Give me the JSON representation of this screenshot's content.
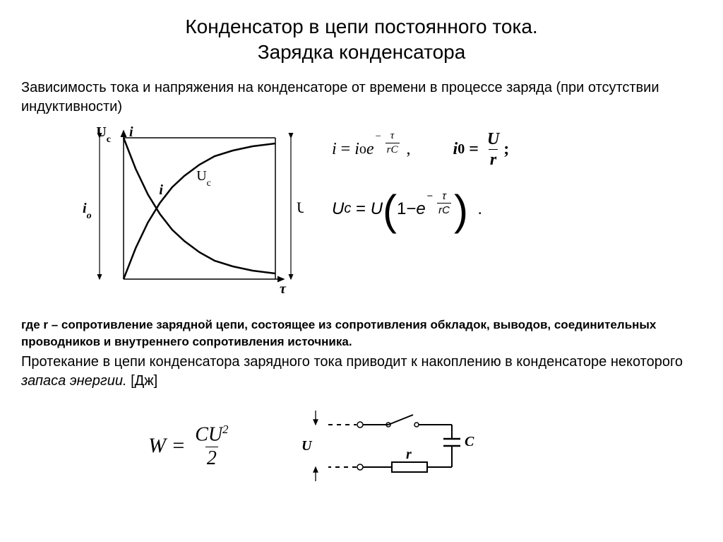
{
  "title_line1": "Конденсатор в цепи постоянного тока.",
  "title_line2": "Зарядка конденсатора",
  "intro": "Зависимость тока и напряжения на конденсаторе от времени в процессе заряда (при отсутствии индуктивности)",
  "chart": {
    "type": "line",
    "x_label": "τ",
    "y_left_label": "U_c",
    "y_left_label2": "i",
    "left_arrow_label": "i₀",
    "right_arrow_label": "U",
    "curve_i_label": "i",
    "curve_uc_label": "U_c",
    "xlim": [
      0,
      100
    ],
    "ylim": [
      0,
      100
    ],
    "curve_i": [
      [
        0,
        100
      ],
      [
        8,
        78
      ],
      [
        16,
        60
      ],
      [
        24,
        46
      ],
      [
        32,
        35
      ],
      [
        40,
        27
      ],
      [
        50,
        19
      ],
      [
        60,
        13
      ],
      [
        72,
        9
      ],
      [
        85,
        6
      ],
      [
        100,
        4
      ]
    ],
    "curve_uc": [
      [
        0,
        0
      ],
      [
        8,
        22
      ],
      [
        16,
        40
      ],
      [
        24,
        54
      ],
      [
        32,
        65
      ],
      [
        40,
        73
      ],
      [
        50,
        81
      ],
      [
        60,
        87
      ],
      [
        72,
        91
      ],
      [
        85,
        94
      ],
      [
        100,
        96
      ]
    ],
    "line_color": "#000000",
    "line_width": 2.5,
    "background": "#ffffff"
  },
  "equations": {
    "i_of_t": {
      "lhs": "i",
      "rhs_base": "i",
      "rhs_sub": "o",
      "exp_factor": "e",
      "exp_neg": "−",
      "exp_num": "τ",
      "exp_den": "rC"
    },
    "i0": {
      "lhs": "i",
      "lhs_sub": "0",
      "num": "U",
      "den": "r",
      "trailer": ";"
    },
    "uc_of_t": {
      "lhs": "U",
      "lhs_sub": "c",
      "rhs_factor": "U",
      "one": "1",
      "minus": " − ",
      "exp_factor": "e",
      "exp_neg": "−",
      "exp_num": "τ",
      "exp_den": "rC",
      "trailer": "."
    },
    "energy": {
      "lhs": "W",
      "num1": "CU",
      "num_exp": "2",
      "den": "2"
    }
  },
  "note": "где r – сопротивление зарядной цепи, состоящее из сопротивления обкладок, выводов, соединительных проводников и внутреннего сопротивления источника.",
  "para_part1": "Протекание в цепи конденсатора зарядного тока приводит к накоплению в конденсаторе некоторого ",
  "para_em": "запаса энергии.",
  "para_part2": " [Дж]",
  "circuit": {
    "labels": {
      "U": "U",
      "r": "r",
      "C": "C"
    },
    "line_color": "#000000",
    "line_width": 2,
    "background": "#ffffff"
  }
}
